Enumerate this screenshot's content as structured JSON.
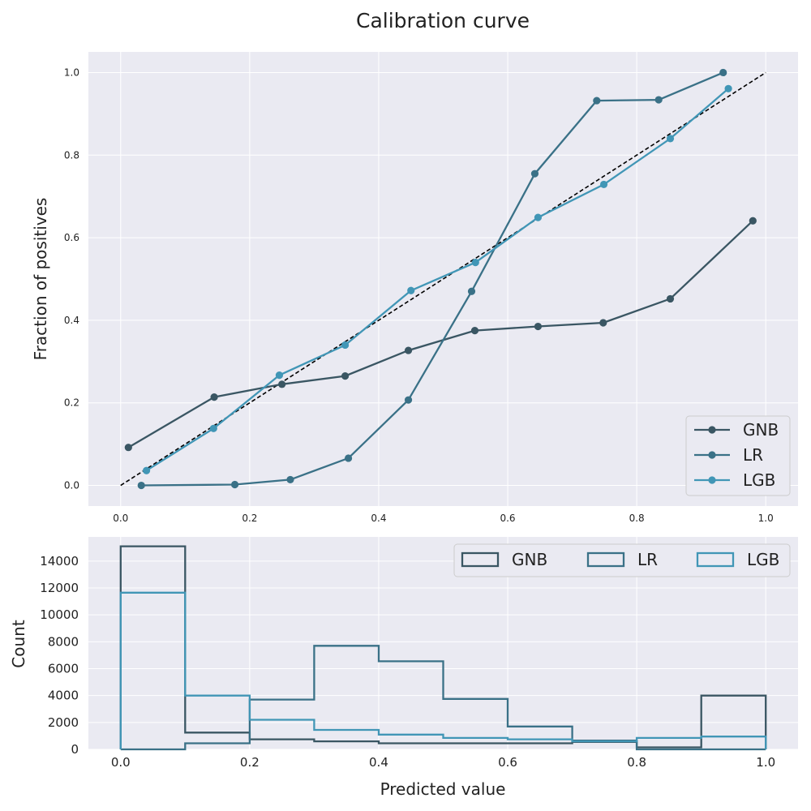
{
  "chart_data": [
    {
      "type": "line",
      "title": "Calibration curve",
      "xlabel": "",
      "ylabel": "Fraction of positives",
      "xlim": [
        -0.05,
        1.05
      ],
      "ylim": [
        -0.05,
        1.05
      ],
      "xticks": [
        "0.0",
        "0.2",
        "0.4",
        "0.6",
        "0.8",
        "1.0"
      ],
      "yticks": [
        "0.0",
        "0.2",
        "0.4",
        "0.6",
        "0.8",
        "1.0"
      ],
      "grid": true,
      "legend_position": "lower-right",
      "reference_line": {
        "x": [
          0,
          1
        ],
        "y": [
          0,
          1
        ],
        "style": "dashed",
        "color": "#000000"
      },
      "series": [
        {
          "name": "GNB",
          "color": "#3a5663",
          "x": [
            0.012,
            0.145,
            0.25,
            0.348,
            0.446,
            0.549,
            0.647,
            0.748,
            0.852,
            0.98
          ],
          "y": [
            0.092,
            0.214,
            0.245,
            0.265,
            0.327,
            0.375,
            0.385,
            0.394,
            0.452,
            0.641
          ]
        },
        {
          "name": "LR",
          "color": "#3a7187",
          "x": [
            0.032,
            0.177,
            0.263,
            0.353,
            0.446,
            0.544,
            0.642,
            0.738,
            0.834,
            0.934
          ],
          "y": [
            0.0,
            0.002,
            0.014,
            0.066,
            0.207,
            0.47,
            0.755,
            0.932,
            0.934,
            1.0
          ]
        },
        {
          "name": "LGB",
          "color": "#4196b6",
          "x": [
            0.04,
            0.144,
            0.246,
            0.348,
            0.45,
            0.55,
            0.647,
            0.749,
            0.852,
            0.942
          ],
          "y": [
            0.036,
            0.138,
            0.267,
            0.34,
            0.472,
            0.54,
            0.649,
            0.729,
            0.84,
            0.961
          ]
        }
      ]
    },
    {
      "type": "histogram",
      "title": "",
      "xlabel": "Predicted value",
      "ylabel": "Count",
      "xlim": [
        -0.05,
        1.05
      ],
      "ylim": [
        0,
        15800
      ],
      "xticks": [
        "0.0",
        "0.2",
        "0.4",
        "0.6",
        "0.8",
        "1.0"
      ],
      "yticks": [
        "0",
        "2000",
        "4000",
        "6000",
        "8000",
        "10000",
        "12000",
        "14000"
      ],
      "grid": true,
      "legend_position": "top-right",
      "bin_edges": [
        0,
        0.1,
        0.2,
        0.3,
        0.4,
        0.5,
        0.6,
        0.7,
        0.8,
        0.9,
        1.0
      ],
      "series": [
        {
          "name": "GNB",
          "color": "#3a5663",
          "values": [
            15100,
            1250,
            750,
            600,
            450,
            450,
            450,
            550,
            150,
            4000
          ]
        },
        {
          "name": "LR",
          "color": "#3a7187",
          "values": [
            0,
            450,
            3700,
            7700,
            6550,
            3750,
            1700,
            650,
            0,
            0
          ]
        },
        {
          "name": "LGB",
          "color": "#4196b6",
          "values": [
            11650,
            4000,
            2200,
            1450,
            1100,
            850,
            750,
            600,
            850,
            950
          ]
        }
      ]
    }
  ]
}
